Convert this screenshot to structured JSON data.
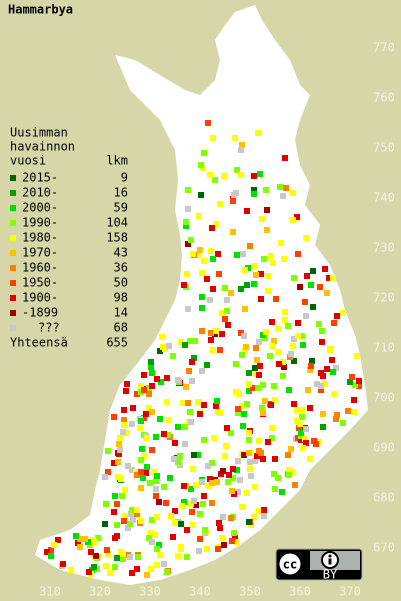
{
  "title": "Hammarbya",
  "legend": {
    "heading": [
      "Uusimman",
      "havainnon"
    ],
    "columns": [
      "vuosi",
      "lkm"
    ],
    "entries": [
      {
        "label": "2015-",
        "count": "9",
        "color": "#006400"
      },
      {
        "label": "2010-",
        "count": "16",
        "color": "#00a000"
      },
      {
        "label": "2000-",
        "count": "59",
        "color": "#00e000"
      },
      {
        "label": "1990-",
        "count": "104",
        "color": "#80ff00"
      },
      {
        "label": "1980-",
        "count": "158",
        "color": "#ffff00"
      },
      {
        "label": "1970-",
        "count": "43",
        "color": "#ffc000"
      },
      {
        "label": "1960-",
        "count": "36",
        "color": "#ff8000"
      },
      {
        "label": "1950-",
        "count": "50",
        "color": "#ff4000"
      },
      {
        "label": "1900-",
        "count": "98",
        "color": "#e00000"
      },
      {
        "label": "-1899",
        "count": "14",
        "color": "#a00000"
      },
      {
        "label": "???",
        "count": "68",
        "color": "#c8c8c8"
      }
    ],
    "total": {
      "label": "Yhteensä",
      "count": "655"
    }
  },
  "x_labels": [
    "310",
    "320",
    "330",
    "340",
    "350",
    "360",
    "370"
  ],
  "y_labels": [
    "770",
    "760",
    "750",
    "740",
    "730",
    "720",
    "710",
    "700",
    "690",
    "680",
    "670"
  ],
  "license": "BY"
}
